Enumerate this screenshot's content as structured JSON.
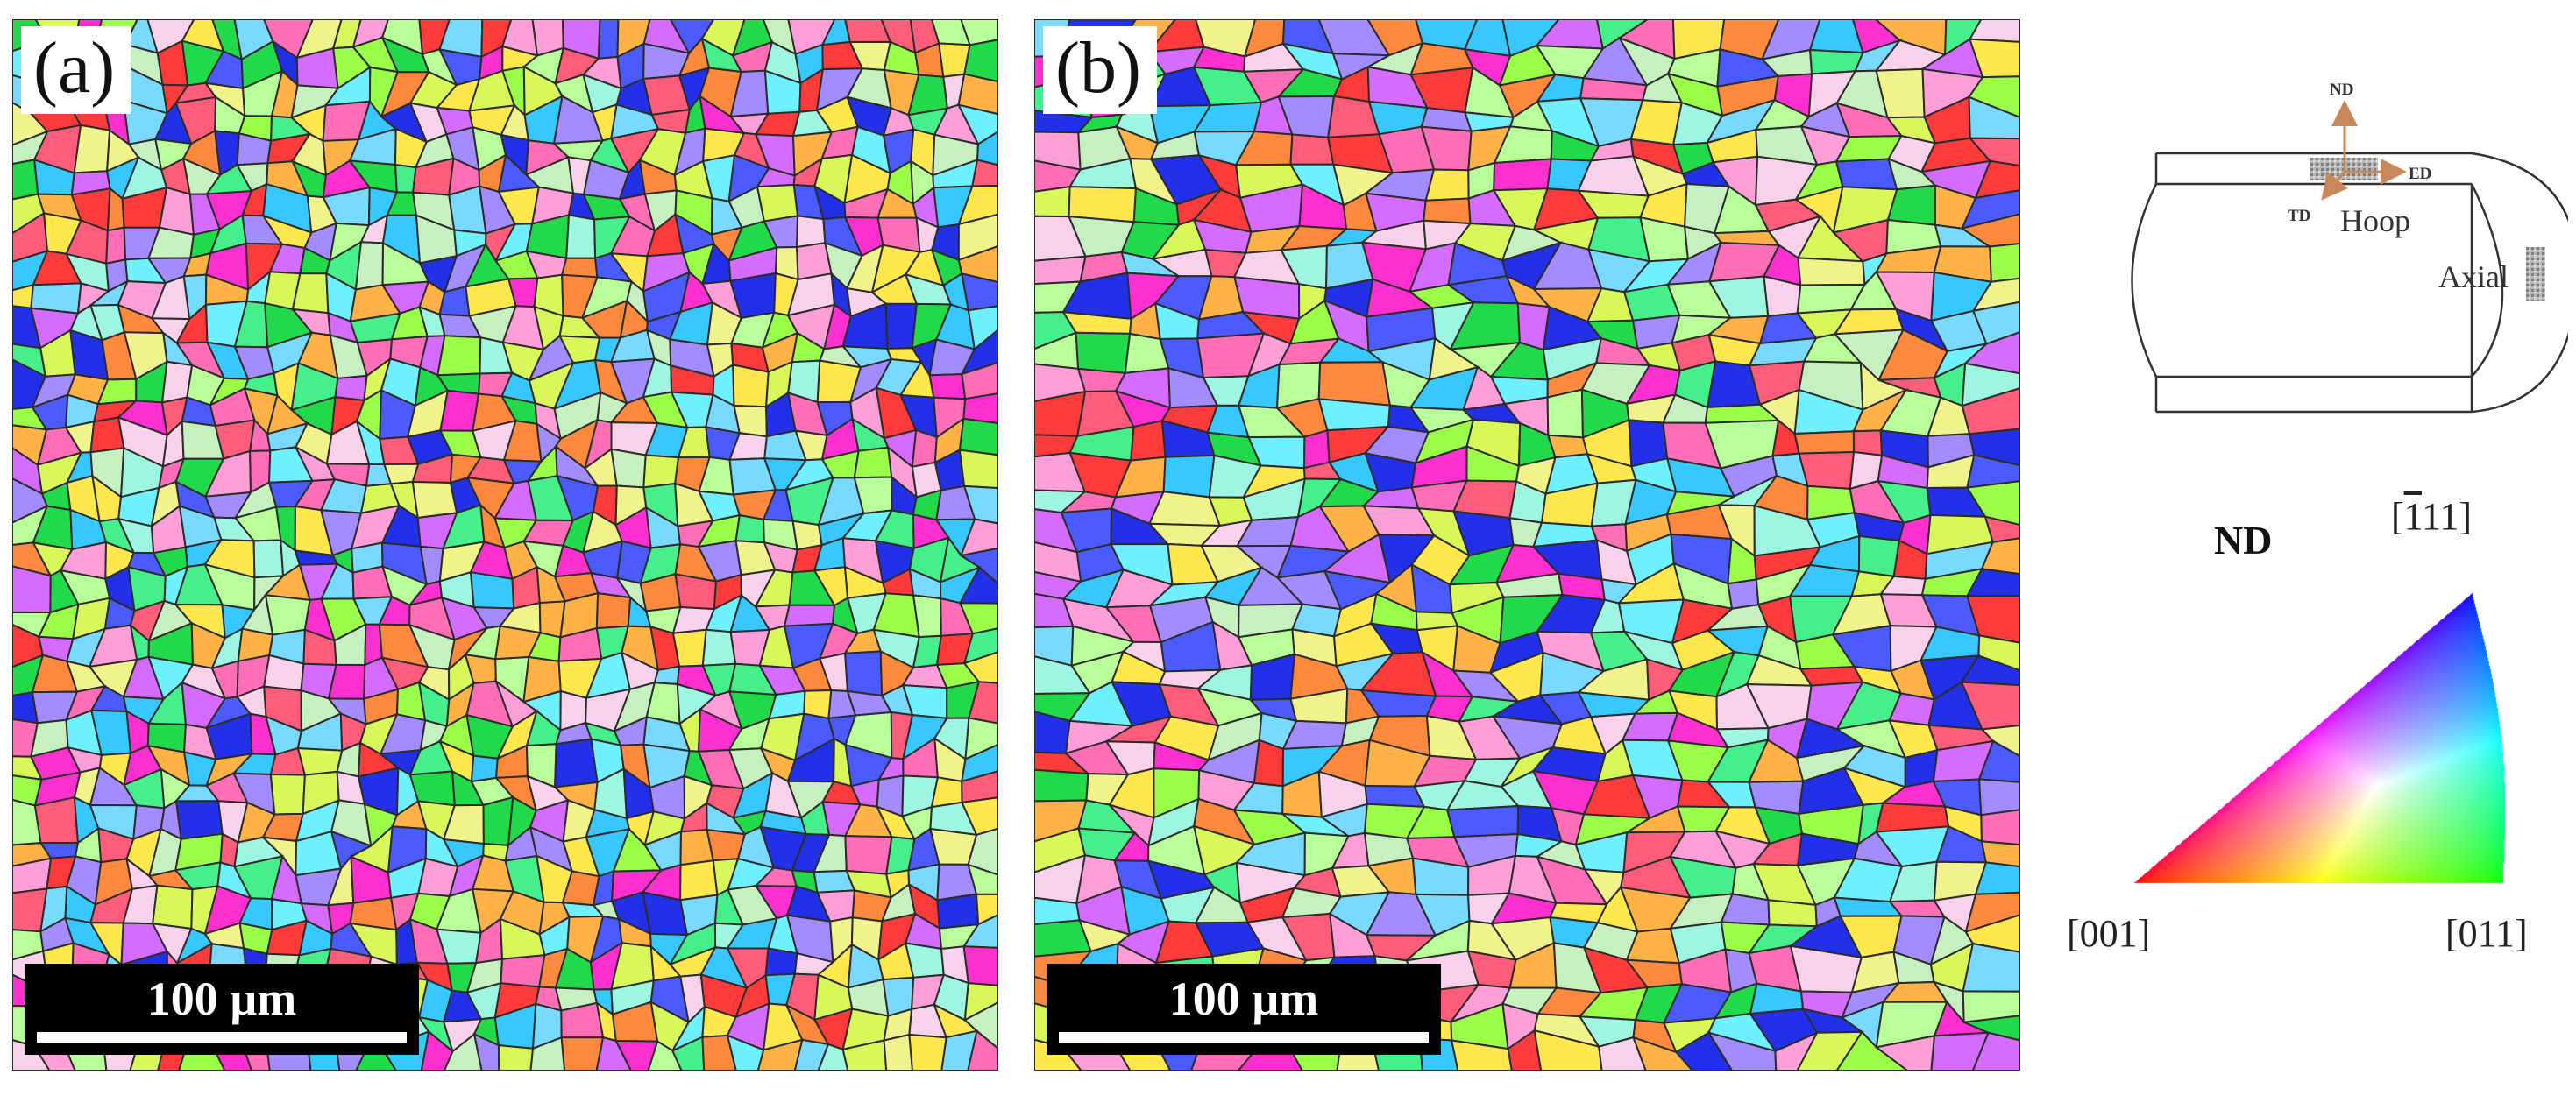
{
  "panels": [
    {
      "label": "(a)",
      "scalebar": "100 µm"
    },
    {
      "label": "(b)",
      "scalebar": "100 µm"
    }
  ],
  "schematic": {
    "axes": {
      "nd": "ND",
      "ed": "ED",
      "td": "TD"
    },
    "hoop_label": "Hoop",
    "axial_label": "Axial"
  },
  "ipf_key": {
    "title": "ND",
    "corner_111_bar": "1",
    "corner_111_rest": "11]",
    "corner_001": "[001]",
    "corner_011": "[011]",
    "colors": {
      "001": "#ff0000",
      "011": "#00ff00",
      "111": "#0000ff"
    }
  }
}
